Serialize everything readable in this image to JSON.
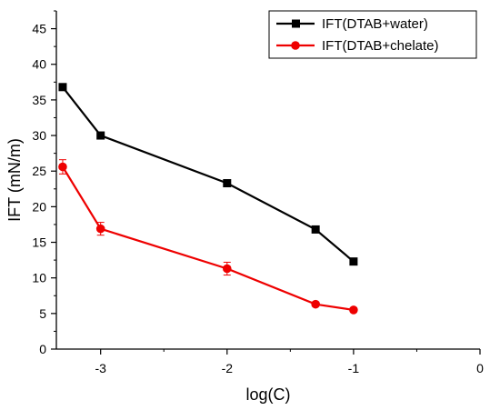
{
  "chart_data": {
    "type": "line",
    "title": "",
    "xlabel": "log(C)",
    "ylabel": "IFT (mN/m)",
    "xlim": [
      -3.35,
      0
    ],
    "ylim": [
      0,
      47.5
    ],
    "xticks": [
      -3,
      -2,
      -1,
      0
    ],
    "xtick_labels": [
      "-3",
      "-2",
      "-1",
      "0"
    ],
    "yticks": [
      0,
      5,
      10,
      15,
      20,
      25,
      30,
      35,
      40,
      45
    ],
    "ytick_labels": [
      "0",
      "5",
      "10",
      "15",
      "20",
      "25",
      "30",
      "35",
      "40",
      "45"
    ],
    "grid": false,
    "legend_position": "top-right",
    "series": [
      {
        "name": "IFT(DTAB+water)",
        "color": "#000000",
        "marker": "square",
        "x": [
          -3.3,
          -3,
          -2,
          -1.3,
          -1
        ],
        "y": [
          36.8,
          30.0,
          23.3,
          16.8,
          12.3
        ],
        "error": [
          0.4,
          0.3,
          0.3,
          0.3,
          0.3
        ]
      },
      {
        "name": "IFT(DTAB+chelate)",
        "color": "#ee0000",
        "marker": "circle",
        "x": [
          -3.3,
          -3,
          -2,
          -1.3,
          -1
        ],
        "y": [
          25.6,
          16.9,
          11.3,
          6.3,
          5.5
        ],
        "error": [
          1.0,
          0.9,
          0.9,
          0.3,
          0.3
        ]
      }
    ]
  }
}
